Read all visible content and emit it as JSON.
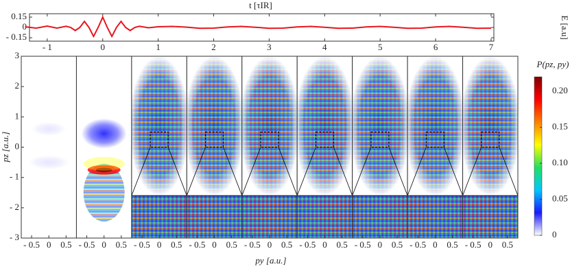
{
  "chart_data": [
    {
      "type": "line",
      "title": "t [τIR]",
      "ylabel": "E [a.u]",
      "x": [
        -1.4,
        -1.2,
        -1.0,
        -0.825,
        -0.66,
        -0.5775,
        -0.495,
        -0.4125,
        -0.33,
        -0.2475,
        -0.165,
        -0.0825,
        0,
        0.0825,
        0.165,
        0.2475,
        0.33,
        0.4125,
        0.495,
        0.5775,
        0.66,
        0.825,
        1.0,
        1.25,
        1.5,
        1.75,
        2.0,
        2.25,
        2.5,
        2.75,
        3.0,
        3.25,
        3.5,
        3.75,
        4.0,
        4.25,
        4.5,
        4.75,
        5.0,
        5.25,
        5.5,
        5.75,
        6.0,
        6.25,
        6.5,
        6.75,
        7.0
      ],
      "values": [
        0.01,
        -0.01,
        0.02,
        -0.01,
        0.017,
        0,
        -0.045,
        0,
        0.088,
        0,
        -0.131,
        0,
        0.15,
        0,
        -0.131,
        0,
        0.088,
        0,
        -0.045,
        0,
        0.017,
        -0.005,
        0.01,
        0.015,
        0.005,
        -0.012,
        -0.01,
        0.008,
        0.015,
        0.003,
        -0.012,
        -0.01,
        0.008,
        0.015,
        0.003,
        -0.012,
        -0.01,
        0.008,
        0.015,
        0.003,
        -0.012,
        -0.01,
        0.008,
        0.015,
        0.003,
        -0.012,
        -0.01
      ],
      "color": "#e8141c",
      "xlim": [
        -1.32,
        7.05
      ],
      "xticks": [
        {
          "value": -1,
          "label": "- 1"
        },
        0,
        1,
        2,
        3,
        4,
        5,
        6,
        7
      ],
      "ylim": [
        -0.2,
        0.2
      ],
      "yticks": [
        0.15,
        0,
        {
          "value": -0.15,
          "label": "- 0.15"
        }
      ]
    },
    {
      "type": "heatmap",
      "xlabel": "py [a.u.]",
      "ylabel": "pz [a.u.]",
      "colorbar_label": "P(pz, py)",
      "xlim": [
        -0.8,
        0.8
      ],
      "xticks": [
        {
          "value": -0.5,
          "label": "- 0.5"
        },
        0,
        0.5
      ],
      "ylim": [
        -3,
        3
      ],
      "yticks": [
        3,
        2,
        1,
        0,
        {
          "value": -1,
          "label": "- 1"
        },
        {
          "value": -2,
          "label": "- 2"
        },
        {
          "value": -3,
          "label": "- 3"
        }
      ],
      "clim": [
        0,
        0.22
      ],
      "cticks": [
        {
          "value": 0.2,
          "label": "0.20"
        },
        0.15,
        {
          "value": 0.1,
          "label": "0.10"
        },
        0.05,
        0
      ],
      "colormap": [
        "#ffffff",
        "#1a1aff",
        "#00c8ff",
        "#20e060",
        "#ffff00",
        "#ff8000",
        "#ff0000",
        "#800000"
      ]
    }
  ]
}
